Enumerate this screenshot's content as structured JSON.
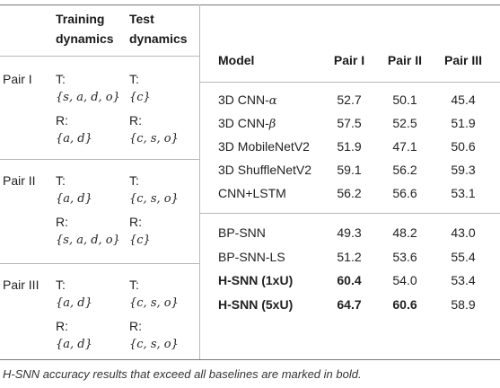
{
  "left_table": {
    "header": {
      "col2_line1": "Training",
      "col2_line2": "dynamics",
      "col3_line1": "Test",
      "col3_line2": "dynamics"
    },
    "rows": [
      {
        "pair": "Pair I",
        "train_T": "{s, a, d, o}",
        "train_R": "{a, d}",
        "test_T": "{c}",
        "test_R": "{c, s, o}"
      },
      {
        "pair": "Pair II",
        "train_T": "{a, d}",
        "train_R": "{s, a, d, o}",
        "test_T": "{c, s, o}",
        "test_R": "{c}"
      },
      {
        "pair": "Pair III",
        "train_T": "{a, d}",
        "train_R": "{a, d}",
        "test_T": "{c, s, o}",
        "test_R": "{c, s, o}"
      }
    ],
    "t_label": "T:",
    "r_label": "R:"
  },
  "right_table": {
    "columns": [
      "Model",
      "Pair I",
      "Pair II",
      "Pair III"
    ],
    "group1": [
      {
        "model": "3D CNN-α",
        "v": [
          "52.7",
          "50.1",
          "45.4"
        ]
      },
      {
        "model": "3D CNN-β",
        "v": [
          "57.5",
          "52.5",
          "51.9"
        ]
      },
      {
        "model": "3D MobileNetV2",
        "v": [
          "51.9",
          "47.1",
          "50.6"
        ]
      },
      {
        "model": "3D ShuffleNetV2",
        "v": [
          "59.1",
          "56.2",
          "59.3"
        ]
      },
      {
        "model": "CNN+LSTM",
        "v": [
          "56.2",
          "56.6",
          "53.1"
        ]
      }
    ],
    "group2": [
      {
        "model": "BP-SNN",
        "v": [
          "49.3",
          "48.2",
          "43.0"
        ]
      },
      {
        "model": "BP-SNN-LS",
        "v": [
          "51.2",
          "53.6",
          "55.4"
        ]
      },
      {
        "model": "H-SNN (1xU)",
        "v": [
          "60.4",
          "54.0",
          "53.4"
        ]
      },
      {
        "model": "H-SNN (5xU)",
        "v": [
          "64.7",
          "60.6",
          "58.9"
        ]
      }
    ]
  },
  "caption": "H-SNN accuracy results that exceed all baselines are marked in bold."
}
